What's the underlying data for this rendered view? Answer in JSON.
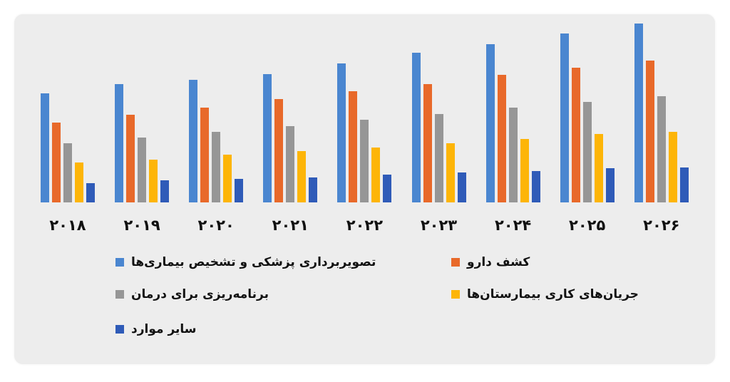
{
  "chart_data": {
    "type": "bar",
    "title": "",
    "xlabel": "",
    "ylabel": "",
    "grid": false,
    "legend_position": "bottom",
    "categories": [
      "۲۰۱۸",
      "۲۰۱۹",
      "۲۰۲۰",
      "۲۰۲۱",
      "۲۰۲۲",
      "۲۰۲۳",
      "۲۰۲۴",
      "۲۰۲۵",
      "۲۰۲۶"
    ],
    "categories_latin": [
      "2018",
      "2019",
      "2020",
      "2021",
      "2022",
      "2023",
      "2024",
      "2025",
      "2026"
    ],
    "value_units": "relative (no y-axis shown; pixel heights)",
    "ylim": [
      0,
      260
    ],
    "series": [
      {
        "name": "تصویربرداری پزشکی و تشخیص بیماری‌ها",
        "color": "#4a86d0",
        "values": [
          153,
          166,
          172,
          180,
          195,
          210,
          222,
          237,
          251
        ]
      },
      {
        "name": "کشف دارو",
        "color": "#e8692a",
        "values": [
          112,
          123,
          133,
          145,
          156,
          166,
          179,
          189,
          199
        ]
      },
      {
        "name": "برنامه‌ریزی برای درمان",
        "color": "#969696",
        "values": [
          83,
          91,
          99,
          107,
          116,
          124,
          133,
          141,
          149
        ]
      },
      {
        "name": "جریان‌های کاری بیمارستان‌ها",
        "color": "#fdb508",
        "values": [
          56,
          60,
          67,
          72,
          77,
          83,
          89,
          96,
          99
        ]
      },
      {
        "name": "سایر موارد",
        "color": "#2f5bb8",
        "values": [
          27,
          31,
          33,
          35,
          39,
          42,
          44,
          48,
          49
        ]
      }
    ]
  },
  "legend": {
    "items": [
      {
        "label": "تصویربرداری پزشکی و تشخیص بیماری‌ها",
        "color": "#4a86d0"
      },
      {
        "label": "کشف دارو",
        "color": "#e8692a"
      },
      {
        "label": "برنامه‌ریزی برای درمان",
        "color": "#969696"
      },
      {
        "label": "جریان‌های کاری بیمارستان‌ها",
        "color": "#fdb508"
      },
      {
        "label": "سایر موارد",
        "color": "#2f5bb8"
      }
    ]
  },
  "style": {
    "card_background": "#ededed",
    "page_background": "#ffffff"
  }
}
